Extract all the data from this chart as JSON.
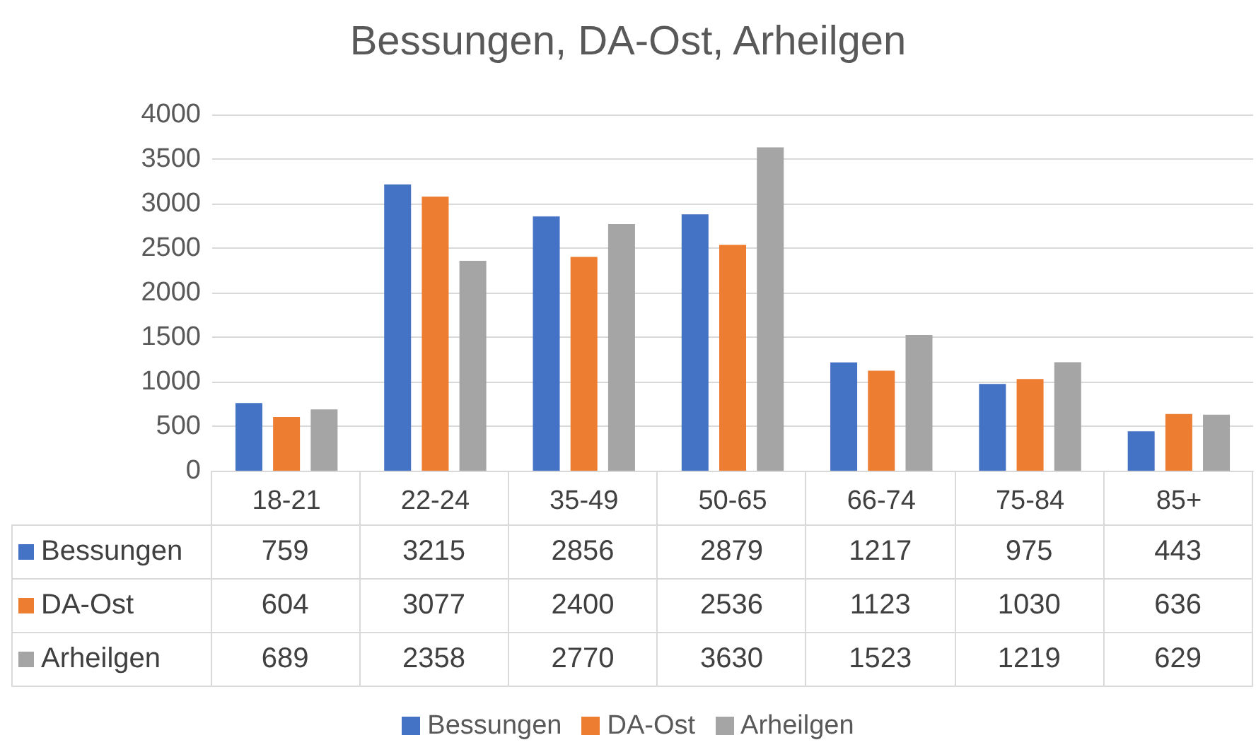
{
  "chart_data": {
    "type": "bar",
    "title": "Bessungen, DA-Ost, Arheilgen",
    "categories": [
      "18-21",
      "22-24",
      "35-49",
      "50-65",
      "66-74",
      "75-84",
      "85+"
    ],
    "series": [
      {
        "name": "Bessungen",
        "color": "#4472c4",
        "values": [
          759,
          3215,
          2856,
          2879,
          1217,
          975,
          443
        ]
      },
      {
        "name": "DA-Ost",
        "color": "#ed7d31",
        "values": [
          604,
          3077,
          2400,
          2536,
          1123,
          1030,
          636
        ]
      },
      {
        "name": "Arheilgen",
        "color": "#a5a5a5",
        "values": [
          689,
          2358,
          2770,
          3630,
          1523,
          1219,
          629
        ]
      }
    ],
    "ylim": [
      0,
      4000
    ],
    "yticks": [
      0,
      500,
      1000,
      1500,
      2000,
      2500,
      3000,
      3500,
      4000
    ],
    "grid": "y",
    "legend": "bottom",
    "data_labels": true
  }
}
